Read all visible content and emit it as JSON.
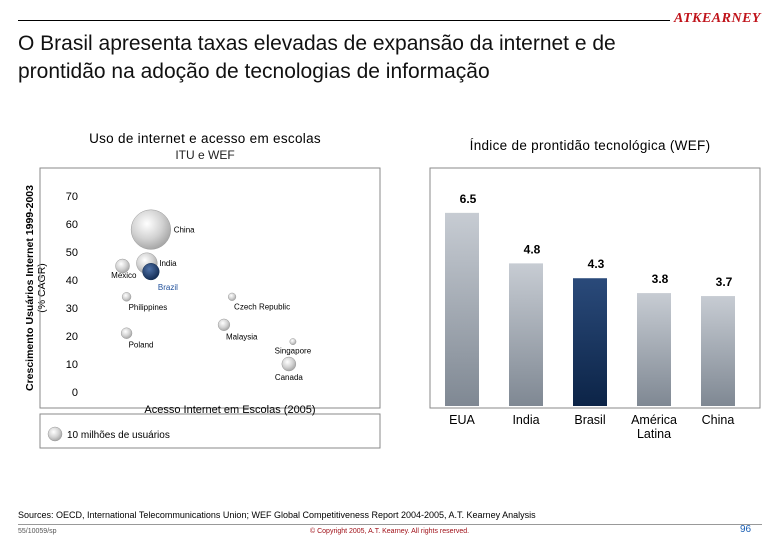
{
  "header": {
    "logo": "ATKEARNEY",
    "title_line1": "O Brasil apresenta taxas elevadas de expansão da internet e de",
    "title_line2": "prontidão na adoção de tecnologias de informação"
  },
  "left_panel": {
    "title": "Uso de internet e acesso em escolas",
    "subtitle": "ITU e WEF",
    "ylabel_line1": "Crescimento Usuários Internet 1999-2003",
    "ylabel_line2": "(% CAGR)",
    "xlabel": "Acesso Internet em Escolas (2005)",
    "legend_label": "10 milhões de usuários"
  },
  "right_panel": {
    "title": "Índice de prontidão tecnológica (WEF)"
  },
  "chart_data": [
    {
      "type": "scatter",
      "ylabel": "Crescimento Usuários Internet 1999-2003 (% CAGR)",
      "xlabel": "Acesso Internet em Escolas (2005)",
      "ylim": [
        0,
        70
      ],
      "yticks": [
        0,
        10,
        20,
        30,
        40,
        50,
        60,
        70
      ],
      "xlim": [
        0,
        7
      ],
      "x_ticks_shown": false,
      "grid": false,
      "legend": "bottom-left",
      "size_legend": {
        "label": "10 milhões de usuários",
        "value": 10
      },
      "points": [
        {
          "name": "China",
          "x": 1.6,
          "y": 58,
          "size": 80,
          "label_side": "right"
        },
        {
          "name": "India",
          "x": 1.5,
          "y": 46,
          "size": 22,
          "label_side": "right"
        },
        {
          "name": "Brazil",
          "x": 1.6,
          "y": 43,
          "size": 14,
          "highlight": true,
          "label_side": "below-right"
        },
        {
          "name": "Mexico",
          "x": 0.9,
          "y": 45,
          "size": 10,
          "label_side": "below-left"
        },
        {
          "name": "Philippines",
          "x": 1.0,
          "y": 34,
          "size": 4,
          "label_side": "below-right"
        },
        {
          "name": "Poland",
          "x": 1.0,
          "y": 21,
          "size": 6,
          "label_side": "below-right"
        },
        {
          "name": "Czech Republic",
          "x": 3.6,
          "y": 34,
          "size": 3,
          "label_side": "below-right"
        },
        {
          "name": "Malaysia",
          "x": 3.4,
          "y": 24,
          "size": 7,
          "label_side": "below-right"
        },
        {
          "name": "Singapore",
          "x": 5.1,
          "y": 18,
          "size": 2,
          "label_side": "below"
        },
        {
          "name": "Canada",
          "x": 5.0,
          "y": 10,
          "size": 10,
          "label_side": "below"
        }
      ]
    },
    {
      "type": "bar",
      "title": "Índice de prontidão tecnológica (WEF)",
      "categories": [
        "EUA",
        "India",
        "Brasil",
        "América Latina",
        "China"
      ],
      "values": [
        6.5,
        4.8,
        4.3,
        3.8,
        3.7
      ],
      "value_labels": [
        "6.5",
        "4.8",
        "4.3",
        "3.8",
        "3.7"
      ],
      "highlight": "Brasil",
      "ylim": [
        0,
        7
      ],
      "grid": false
    }
  ],
  "colors": {
    "panel_border": "#8a8a8a",
    "bar": "#9aa3ae",
    "bar_highlight": "#16365f",
    "bubble": "#c8c8c8",
    "bubble_highlight": "#1f3f6e",
    "brazil_label": "#1f4f9a",
    "logo": "#c0141b",
    "copyright": "#a01018",
    "page_number": "#1a5fb4"
  },
  "footer": {
    "sources": "Sources: OECD, International Telecommunications Union; WEF Global Competitiveness Report 2004-2005, A.T. Kearney Analysis",
    "code": "55/10059/sp",
    "copyright": "© Copyright 2005, A.T. Kearney. All rights reserved.",
    "page": "96"
  }
}
